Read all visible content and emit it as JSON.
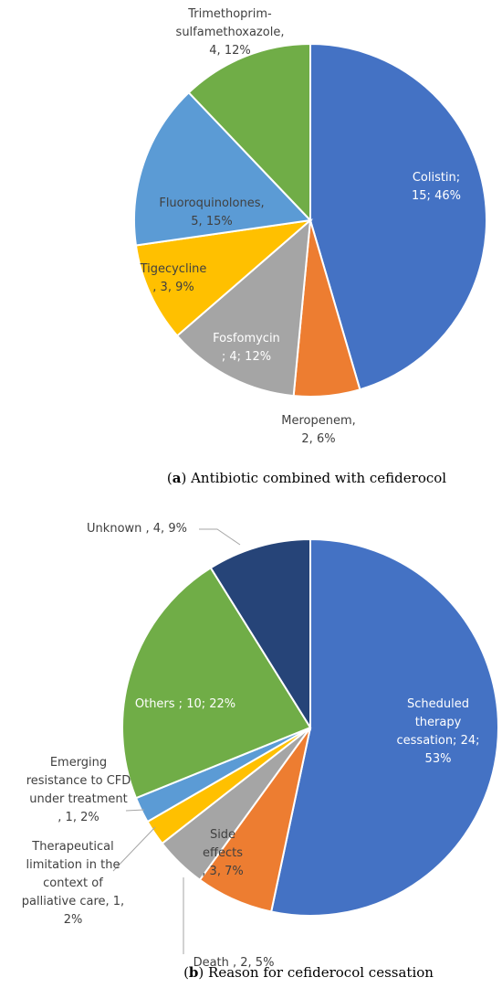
{
  "chart_data": [
    {
      "type": "pie",
      "caption": {
        "letter": "a",
        "text": ") Antibiotic combined with cefiderocol"
      },
      "slices": [
        {
          "name": "Colistin",
          "value": 15,
          "percent": "46%",
          "color": "#4472C4",
          "label_lines": [
            "Colistin;",
            "15; 46%"
          ]
        },
        {
          "name": "Meropenem",
          "value": 2,
          "percent": "6%",
          "color": "#ED7D31",
          "label_lines": [
            "Meropenem,",
            "2, 6%"
          ]
        },
        {
          "name": "Fosfomycin",
          "value": 4,
          "percent": "12%",
          "color": "#A5A5A5",
          "label_lines": [
            "Fosfomycin",
            "; 4; 12%"
          ]
        },
        {
          "name": "Tigecycline",
          "value": 3,
          "percent": "9%",
          "color": "#FFC000",
          "label_lines": [
            "Tigecycline",
            ", 3, 9%"
          ]
        },
        {
          "name": "Fluoroquinolones",
          "value": 5,
          "percent": "15%",
          "color": "#5B9BD5",
          "label_lines": [
            "Fluoroquinolones,",
            "5, 15%"
          ]
        },
        {
          "name": "Trimethoprim-sulfamethoxazole",
          "value": 4,
          "percent": "12%",
          "color": "#70AD47",
          "label_lines": [
            "Trimethoprim-",
            "sulfamethoxazole,",
            "4, 12%"
          ]
        }
      ]
    },
    {
      "type": "pie",
      "caption": {
        "letter": "b",
        "text": ") Reason for cefiderocol cessation"
      },
      "slices": [
        {
          "name": "Scheduled therapy cessation",
          "value": 24,
          "percent": "53%",
          "color": "#4472C4",
          "label_lines": [
            "Scheduled",
            "therapy",
            "cessation; 24;",
            "53%"
          ]
        },
        {
          "name": "Side effects",
          "value": 3,
          "percent": "7%",
          "color": "#ED7D31",
          "label_lines": [
            "Side",
            "effects",
            ", 3, 7%"
          ]
        },
        {
          "name": "Death",
          "value": 2,
          "percent": "5%",
          "color": "#A5A5A5",
          "label_lines": [
            "Death , 2, 5%"
          ]
        },
        {
          "name": "Therapeutical limitation in the context of palliative care",
          "value": 1,
          "percent": "2%",
          "color": "#FFC000",
          "label_lines": [
            "Therapeutical",
            "limitation in the",
            "context of",
            "palliative care, 1,",
            "2%"
          ]
        },
        {
          "name": "Emerging resistance to CFD under treatment",
          "value": 1,
          "percent": "2%",
          "color": "#5B9BD5",
          "label_lines": [
            "Emerging",
            "resistance to CFD",
            "under treatment",
            ", 1, 2%"
          ]
        },
        {
          "name": "Others",
          "value": 10,
          "percent": "22%",
          "color": "#70AD47",
          "label_lines": [
            "Others ; 10; 22%"
          ]
        },
        {
          "name": "Unknown",
          "value": 4,
          "percent": "9%",
          "color": "#264478",
          "label_lines": [
            "Unknown , 4, 9%"
          ]
        }
      ]
    }
  ]
}
